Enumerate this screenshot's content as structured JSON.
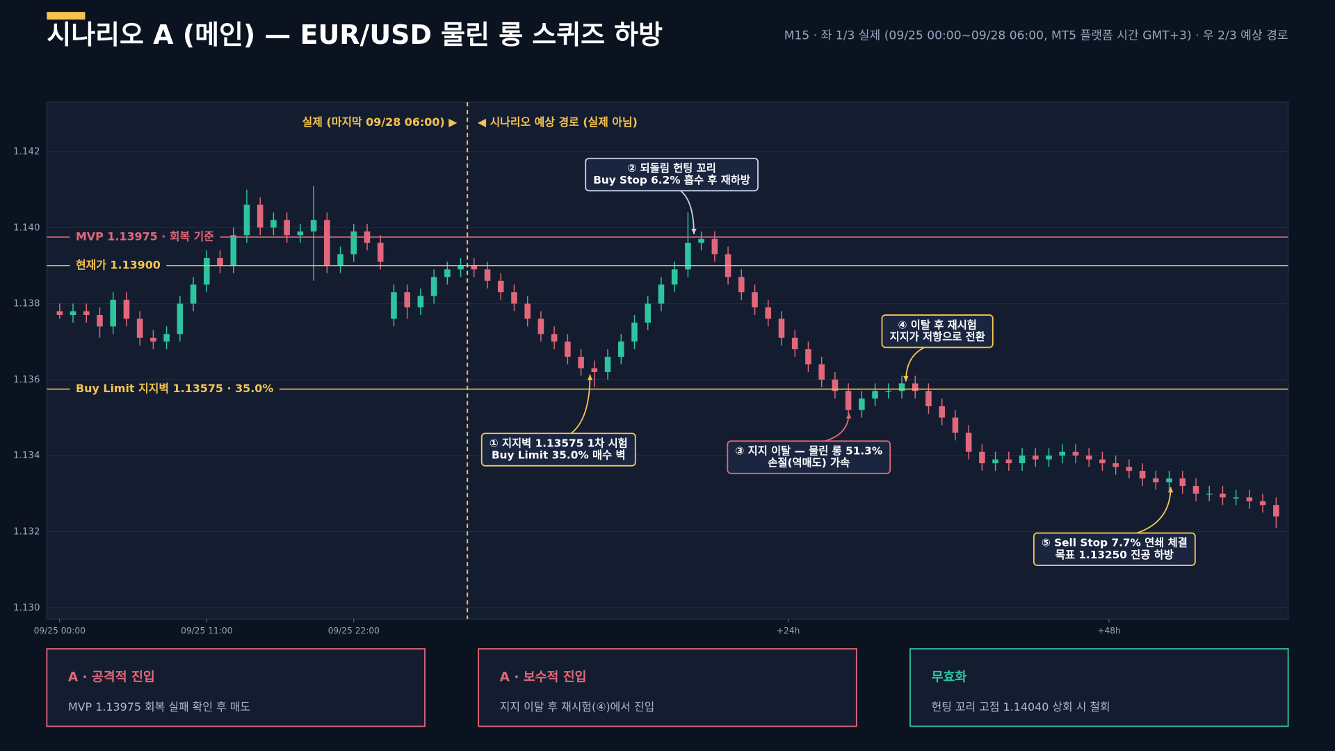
{
  "title": "시나리오 A (메인) — EUR/USD 물린 롱 스퀴즈 하방",
  "subtitle": "M15 · 좌 1/3 실제 (09/25 00:00~09/28 06:00, MT5 플랫폼 시간 GMT+3) · 우 2/3 예상 경로",
  "chart_data": {
    "type": "candlestick",
    "xlim": [
      -0.96,
      91.9
    ],
    "ylim": [
      1.1297,
      1.1433
    ],
    "grid": true,
    "xticks": [
      {
        "value": 0,
        "label": "09/25 00:00"
      },
      {
        "value": 11,
        "label": "09/25 11:00"
      },
      {
        "value": 22,
        "label": "09/25 22:00"
      },
      {
        "value": 54.5,
        "label": "+24h"
      },
      {
        "value": 78.5,
        "label": "+48h"
      }
    ],
    "yticks": [
      {
        "value": 1.13,
        "label": "1.130"
      },
      1.132,
      1.134,
      1.136,
      1.138,
      {
        "value": 1.14,
        "label": "1.140"
      },
      1.142
    ],
    "divider": {
      "x": 30.5,
      "left_label": "실제 (마지막 09/28 06:00) ▶",
      "right_label": "◀ 시나리오 예상 경로 (실제 아님)",
      "color": "#f5c451"
    },
    "up_color": "#2ec4a0",
    "down_color": "#e0687a",
    "x": [
      0,
      1,
      2,
      3,
      4,
      5,
      6,
      7,
      8,
      9,
      10,
      11,
      12,
      13,
      14,
      15,
      16,
      17,
      18,
      19,
      20,
      21,
      22,
      23,
      24,
      25,
      26,
      27,
      28,
      29,
      30,
      31,
      32,
      33,
      34,
      35,
      36,
      37,
      38,
      39,
      40,
      41,
      42,
      43,
      44,
      45,
      46,
      47,
      48,
      49,
      50,
      51,
      52,
      53,
      54,
      55,
      56,
      57,
      58,
      59,
      60,
      61,
      62,
      63,
      64,
      65,
      66,
      67,
      68,
      69,
      70,
      71,
      72,
      73,
      74,
      75,
      76,
      77,
      78,
      79,
      80,
      81,
      82,
      83,
      84,
      85,
      86,
      87,
      88,
      89,
      90,
      91
    ],
    "open": [
      1.1378,
      1.1377,
      1.1378,
      1.1377,
      1.1374,
      1.1381,
      1.1376,
      1.1371,
      1.137,
      1.1372,
      1.138,
      1.1385,
      1.1392,
      1.139,
      1.1398,
      1.1406,
      1.14,
      1.1402,
      1.1398,
      1.1399,
      1.1402,
      1.139,
      1.1393,
      1.1399,
      1.1396,
      1.1376,
      1.1383,
      1.1379,
      1.1382,
      1.1387,
      1.1389,
      1.139,
      1.1389,
      1.1386,
      1.1383,
      1.138,
      1.1376,
      1.1372,
      1.137,
      1.1366,
      1.1363,
      1.1362,
      1.1366,
      1.137,
      1.1375,
      1.138,
      1.1385,
      1.1389,
      1.1396,
      1.1397,
      1.1393,
      1.1387,
      1.1383,
      1.1379,
      1.1376,
      1.1371,
      1.1368,
      1.1364,
      1.136,
      1.1357,
      1.1352,
      1.1355,
      1.1357,
      1.1357,
      1.1359,
      1.1357,
      1.1353,
      1.135,
      1.1346,
      1.1341,
      1.1338,
      1.1339,
      1.1338,
      1.134,
      1.1339,
      1.134,
      1.1341,
      1.134,
      1.1339,
      1.1338,
      1.1337,
      1.1336,
      1.1334,
      1.1333,
      1.1334,
      1.1332,
      1.133,
      1.133,
      1.1329,
      1.1329,
      1.1328,
      1.1327
    ],
    "high": [
      1.138,
      1.138,
      1.138,
      1.1379,
      1.1383,
      1.1383,
      1.1378,
      1.1373,
      1.1374,
      1.1382,
      1.1387,
      1.1394,
      1.1394,
      1.14,
      1.141,
      1.1408,
      1.1404,
      1.1404,
      1.1401,
      1.1411,
      1.1404,
      1.1395,
      1.1401,
      1.1401,
      1.1398,
      1.1385,
      1.1385,
      1.1384,
      1.1389,
      1.1391,
      1.1392,
      1.1392,
      1.1391,
      1.1388,
      1.1385,
      1.1382,
      1.1378,
      1.1374,
      1.1372,
      1.1368,
      1.1365,
      1.1368,
      1.1372,
      1.1377,
      1.1382,
      1.1387,
      1.1391,
      1.1404,
      1.1399,
      1.1399,
      1.1395,
      1.1389,
      1.1385,
      1.1381,
      1.1378,
      1.1373,
      1.137,
      1.1366,
      1.1362,
      1.1359,
      1.1357,
      1.1359,
      1.1359,
      1.1361,
      1.1361,
      1.1359,
      1.1355,
      1.1352,
      1.1348,
      1.1343,
      1.1341,
      1.1341,
      1.1342,
      1.1342,
      1.1342,
      1.1343,
      1.1343,
      1.1342,
      1.1341,
      1.134,
      1.1339,
      1.1338,
      1.1336,
      1.1336,
      1.1336,
      1.1334,
      1.1332,
      1.1332,
      1.1331,
      1.1331,
      1.133,
      1.1329
    ],
    "low": [
      1.1376,
      1.1375,
      1.1375,
      1.1371,
      1.1372,
      1.1374,
      1.1369,
      1.1368,
      1.1368,
      1.137,
      1.1378,
      1.1383,
      1.1388,
      1.1388,
      1.1396,
      1.1398,
      1.1398,
      1.1396,
      1.1396,
      1.1386,
      1.1388,
      1.1388,
      1.1391,
      1.1394,
      1.1389,
      1.1374,
      1.1376,
      1.1377,
      1.138,
      1.1385,
      1.1387,
      1.1387,
      1.1384,
      1.1381,
      1.1378,
      1.1374,
      1.137,
      1.1368,
      1.1364,
      1.1361,
      1.1358,
      1.136,
      1.1364,
      1.1368,
      1.1373,
      1.1378,
      1.1383,
      1.1387,
      1.1394,
      1.1391,
      1.1385,
      1.1381,
      1.1377,
      1.1374,
      1.1369,
      1.1366,
      1.1362,
      1.1358,
      1.1355,
      1.135,
      1.135,
      1.1353,
      1.1355,
      1.1355,
      1.1355,
      1.1351,
      1.1348,
      1.1344,
      1.1339,
      1.1336,
      1.1336,
      1.1336,
      1.1336,
      1.1337,
      1.1337,
      1.1338,
      1.1338,
      1.1337,
      1.1336,
      1.1335,
      1.1334,
      1.1332,
      1.1331,
      1.1331,
      1.133,
      1.1328,
      1.1328,
      1.1327,
      1.1327,
      1.1326,
      1.1325,
      1.1321
    ],
    "close": [
      1.1377,
      1.1378,
      1.1377,
      1.1374,
      1.1381,
      1.1376,
      1.1371,
      1.137,
      1.1372,
      1.138,
      1.1385,
      1.1392,
      1.139,
      1.1398,
      1.1406,
      1.14,
      1.1402,
      1.1398,
      1.1399,
      1.1402,
      1.139,
      1.1393,
      1.1399,
      1.1396,
      1.1391,
      1.1383,
      1.1379,
      1.1382,
      1.1387,
      1.1389,
      1.139,
      1.1389,
      1.1386,
      1.1383,
      1.138,
      1.1376,
      1.1372,
      1.137,
      1.1366,
      1.1363,
      1.1362,
      1.1366,
      1.137,
      1.1375,
      1.138,
      1.1385,
      1.1389,
      1.1396,
      1.1397,
      1.1393,
      1.1387,
      1.1383,
      1.1379,
      1.1376,
      1.1371,
      1.1368,
      1.1364,
      1.136,
      1.1357,
      1.1352,
      1.1355,
      1.1357,
      1.1357,
      1.1359,
      1.1357,
      1.1353,
      1.135,
      1.1346,
      1.1341,
      1.1338,
      1.1339,
      1.1338,
      1.134,
      1.1339,
      1.134,
      1.1341,
      1.134,
      1.1339,
      1.1338,
      1.1337,
      1.1336,
      1.1334,
      1.1333,
      1.1334,
      1.1332,
      1.133,
      1.133,
      1.1329,
      1.1329,
      1.1328,
      1.1327,
      1.1324
    ],
    "levels": [
      {
        "value": 1.13975,
        "label": "MVP 1.13975 · 회복 기준",
        "color": "#e0687a"
      },
      {
        "value": 1.139,
        "label": "현재가 1.13900",
        "color": "#f5c451"
      },
      {
        "value": 1.13575,
        "label": "Buy Limit 지지벽 1.13575 · 35.0%",
        "color": "#f5c451"
      }
    ],
    "annotations": [
      {
        "lines": [
          "① 지지벽 1.13575 1차 시험",
          "Buy Limit 35.0% 매수 벽"
        ],
        "color": "#f5c451"
      },
      {
        "lines": [
          "② 되돌림 헌팅 꼬리",
          "Buy Stop 6.2% 흡수 후 재하방"
        ],
        "color": "#c9d3e6"
      },
      {
        "lines": [
          "③ 지지 이탈 — 물린 롱 51.3%",
          "손절(역매도) 가속"
        ],
        "color": "#e0687a"
      },
      {
        "lines": [
          "④ 이탈 후 재시험",
          "지지가 저항으로 전환"
        ],
        "color": "#f5c451"
      },
      {
        "lines": [
          "⑤ Sell Stop 7.7% 연쇄 체결",
          "목표 1.13250 진공 하방"
        ],
        "color": "#f5c451"
      }
    ]
  },
  "cards": [
    {
      "title": "A · 공격적 진입",
      "text": "MVP 1.13975 회복 실패 확인 후 매도",
      "color": "#e0687a"
    },
    {
      "title": "A · 보수적 진입",
      "text": "지지 이탈 후 재시험(④)에서 진입",
      "color": "#e0687a"
    },
    {
      "title": "무효화",
      "text": "헌팅 꼬리 고점 1.14040 상회 시 철회",
      "color": "#2ec4a0"
    }
  ]
}
